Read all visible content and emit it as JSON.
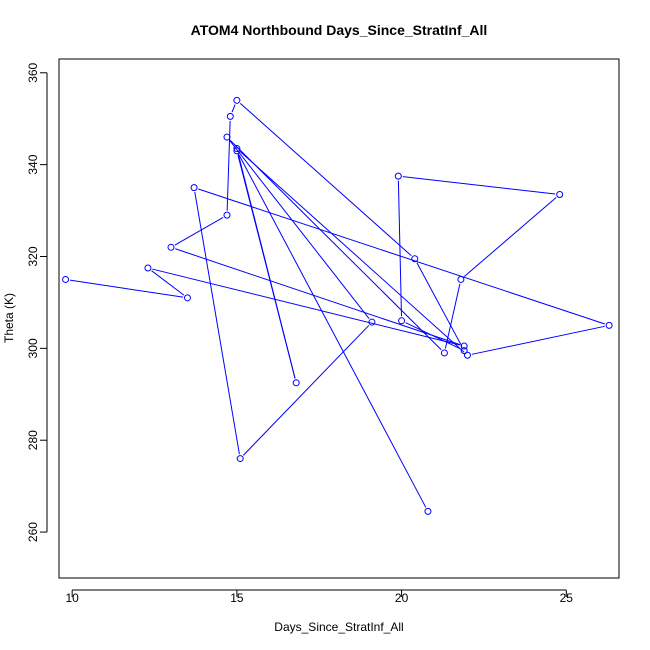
{
  "chart_data": {
    "type": "line",
    "title": "ATOM4 Northbound Days_Since_StratInf_All",
    "xlabel": "Days_Since_StratInf_All",
    "ylabel": "Theta (K)",
    "xlim": [
      9.6,
      26.6
    ],
    "ylim": [
      250,
      363
    ],
    "xticks": [
      10,
      15,
      20,
      25
    ],
    "yticks": [
      260,
      280,
      300,
      320,
      340,
      360
    ],
    "grid": false,
    "marker": "open-circle",
    "series_color": "#0000ff",
    "points": [
      {
        "x": 9.8,
        "y": 315.0
      },
      {
        "x": 13.5,
        "y": 311.0
      },
      {
        "x": 12.3,
        "y": 317.5
      },
      {
        "x": 21.9,
        "y": 300.5
      },
      {
        "x": 13.0,
        "y": 322.0
      },
      {
        "x": 14.7,
        "y": 329.0
      },
      {
        "x": 14.8,
        "y": 350.5
      },
      {
        "x": 15.0,
        "y": 354.0
      },
      {
        "x": 20.4,
        "y": 319.5
      },
      {
        "x": 21.9,
        "y": 299.5
      },
      {
        "x": 20.0,
        "y": 306.0
      },
      {
        "x": 19.9,
        "y": 337.5
      },
      {
        "x": 24.8,
        "y": 333.5
      },
      {
        "x": 21.8,
        "y": 315.0
      },
      {
        "x": 21.3,
        "y": 299.0
      },
      {
        "x": 14.7,
        "y": 346.0
      },
      {
        "x": 19.1,
        "y": 305.7
      },
      {
        "x": 15.1,
        "y": 276.0
      },
      {
        "x": 13.7,
        "y": 335.0
      },
      {
        "x": 26.3,
        "y": 305.0
      },
      {
        "x": 22.0,
        "y": 298.5
      },
      {
        "x": 15.0,
        "y": 343.5
      },
      {
        "x": 16.8,
        "y": 292.5
      },
      {
        "x": 15.0,
        "y": 343.0
      },
      {
        "x": 20.8,
        "y": 264.5
      }
    ]
  }
}
